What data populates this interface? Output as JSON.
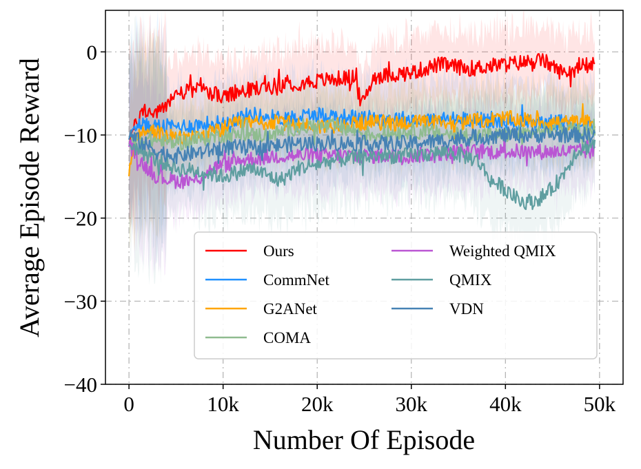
{
  "chart_data": {
    "type": "line",
    "title": "",
    "xlabel": "Number Of Episode",
    "ylabel": "Average Episode Reward",
    "xlim": [
      -2500,
      52500
    ],
    "ylim": [
      -40,
      5
    ],
    "xticks": [
      0,
      10000,
      20000,
      30000,
      40000,
      50000
    ],
    "xtick_labels": [
      "0",
      "10k",
      "20k",
      "30k",
      "40k",
      "50k"
    ],
    "yticks": [
      0,
      -10,
      -20,
      -30,
      -40
    ],
    "ytick_labels": [
      "0",
      "−10",
      "−20",
      "−30",
      "−40"
    ],
    "grid": true,
    "legend_position": "lower-right",
    "x_end": 49500,
    "series": [
      {
        "name": "Ours",
        "color": "#ff0000",
        "band": 4.5,
        "anchors": [
          [
            0,
            -10.5
          ],
          [
            1500,
            -7
          ],
          [
            3000,
            -7.5
          ],
          [
            5000,
            -5
          ],
          [
            8000,
            -4.5
          ],
          [
            10000,
            -5.5
          ],
          [
            13000,
            -4.5
          ],
          [
            16000,
            -4
          ],
          [
            20000,
            -3.5
          ],
          [
            24000,
            -3
          ],
          [
            24700,
            -6.5
          ],
          [
            26000,
            -3
          ],
          [
            30000,
            -2.5
          ],
          [
            33000,
            -1.5
          ],
          [
            36000,
            -2
          ],
          [
            40000,
            -1.5
          ],
          [
            44000,
            -1
          ],
          [
            46000,
            -2.5
          ],
          [
            49500,
            -1.5
          ]
        ]
      },
      {
        "name": "CommNet",
        "color": "#1e90ff",
        "band": 5,
        "anchors": [
          [
            0,
            -10.5
          ],
          [
            500,
            -8.5
          ],
          [
            2000,
            -9
          ],
          [
            5000,
            -9
          ],
          [
            10000,
            -8.5
          ],
          [
            13000,
            -7.5
          ],
          [
            16000,
            -8
          ],
          [
            20000,
            -7.5
          ],
          [
            25000,
            -8
          ],
          [
            28000,
            -8
          ],
          [
            32000,
            -8.2
          ],
          [
            36000,
            -8
          ],
          [
            40000,
            -8.5
          ],
          [
            45000,
            -8.5
          ],
          [
            49500,
            -8.5
          ]
        ]
      },
      {
        "name": "G2ANet",
        "color": "#ffa500",
        "band": 4.5,
        "anchors": [
          [
            0,
            -15
          ],
          [
            800,
            -10
          ],
          [
            2500,
            -9.5
          ],
          [
            5000,
            -10.5
          ],
          [
            8000,
            -10
          ],
          [
            12000,
            -8.5
          ],
          [
            16000,
            -8.5
          ],
          [
            20000,
            -9
          ],
          [
            25000,
            -8.5
          ],
          [
            30000,
            -8.5
          ],
          [
            35000,
            -8.5
          ],
          [
            40000,
            -8
          ],
          [
            45000,
            -8.5
          ],
          [
            49500,
            -8.5
          ]
        ]
      },
      {
        "name": "COMA",
        "color": "#8fbc8f",
        "band": 4.5,
        "anchors": [
          [
            0,
            -11
          ],
          [
            2000,
            -10.5
          ],
          [
            5000,
            -11
          ],
          [
            10000,
            -10
          ],
          [
            15000,
            -10
          ],
          [
            18000,
            -9
          ],
          [
            22000,
            -9
          ],
          [
            26000,
            -10
          ],
          [
            30000,
            -9.5
          ],
          [
            35000,
            -10
          ],
          [
            40000,
            -10
          ],
          [
            45000,
            -9.5
          ],
          [
            49500,
            -9.5
          ]
        ]
      },
      {
        "name": "Weighted QMIX",
        "color": "#ba55d3",
        "band": 4.5,
        "anchors": [
          [
            0,
            -11
          ],
          [
            1000,
            -13
          ],
          [
            3000,
            -15
          ],
          [
            5000,
            -15.5
          ],
          [
            7000,
            -15.5
          ],
          [
            9000,
            -14
          ],
          [
            12000,
            -13
          ],
          [
            16000,
            -12.5
          ],
          [
            20000,
            -12.5
          ],
          [
            25000,
            -12.5
          ],
          [
            30000,
            -12.5
          ],
          [
            35000,
            -12
          ],
          [
            40000,
            -12
          ],
          [
            45000,
            -12
          ],
          [
            49500,
            -12
          ]
        ]
      },
      {
        "name": "QMIX",
        "color": "#5f9ea0",
        "band": 5.5,
        "anchors": [
          [
            0,
            -11
          ],
          [
            2000,
            -12.5
          ],
          [
            5000,
            -14
          ],
          [
            8000,
            -14.5
          ],
          [
            10000,
            -15
          ],
          [
            13000,
            -14
          ],
          [
            16000,
            -15.5
          ],
          [
            18000,
            -14
          ],
          [
            22000,
            -13
          ],
          [
            26000,
            -12.5
          ],
          [
            30000,
            -12.5
          ],
          [
            34000,
            -12
          ],
          [
            37000,
            -13
          ],
          [
            38500,
            -15.5
          ],
          [
            40000,
            -16.5
          ],
          [
            41500,
            -18
          ],
          [
            43000,
            -18
          ],
          [
            44500,
            -17
          ],
          [
            46000,
            -15
          ],
          [
            47500,
            -12
          ],
          [
            49500,
            -11
          ]
        ]
      },
      {
        "name": "VDN",
        "color": "#4682b4",
        "band": 4.5,
        "anchors": [
          [
            0,
            -10
          ],
          [
            1500,
            -11
          ],
          [
            3000,
            -12
          ],
          [
            5000,
            -12.5
          ],
          [
            8000,
            -12
          ],
          [
            10000,
            -11.5
          ],
          [
            14000,
            -11.5
          ],
          [
            18000,
            -11
          ],
          [
            22000,
            -11
          ],
          [
            26000,
            -11
          ],
          [
            30000,
            -11
          ],
          [
            35000,
            -10.5
          ],
          [
            40000,
            -10
          ],
          [
            45000,
            -10
          ],
          [
            49500,
            -10
          ]
        ]
      }
    ]
  }
}
